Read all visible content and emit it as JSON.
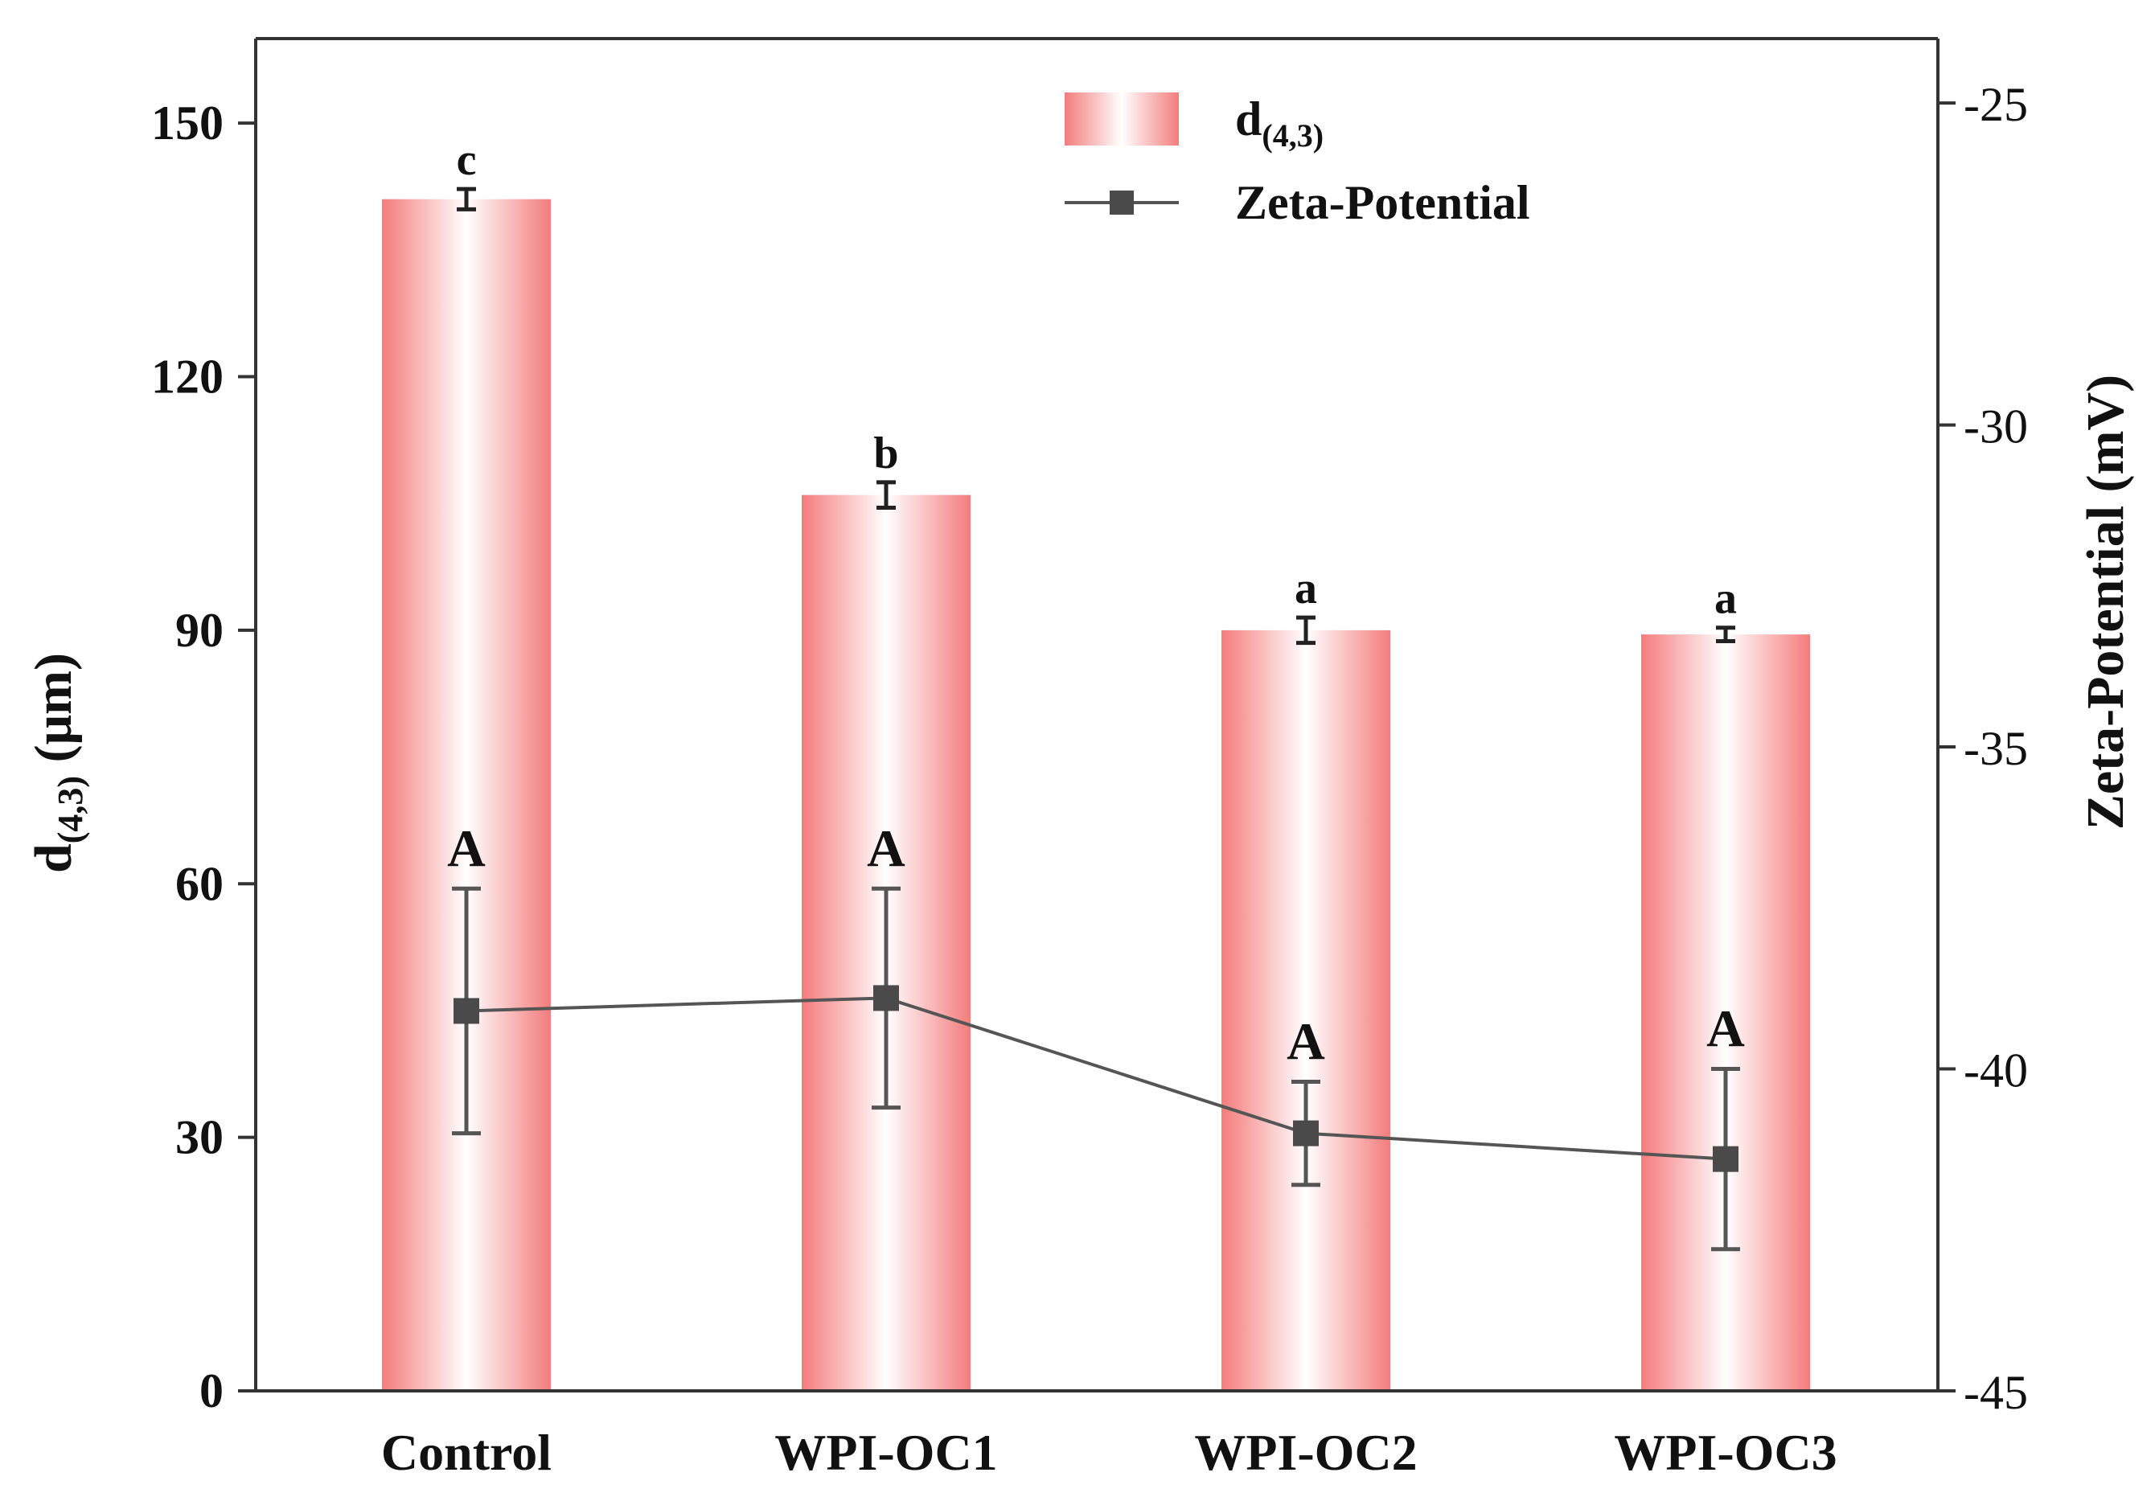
{
  "chart_data": {
    "type": "bar",
    "title": "",
    "categories": [
      "Control",
      "WPI-OC1",
      "WPI-OC2",
      "WPI-OC3"
    ],
    "xlabel": "",
    "ylabel": {
      "base": "d",
      "sub": "(4,3)",
      "unit": " (μm)"
    },
    "ylim": [
      0,
      160
    ],
    "yticks": [
      0,
      30,
      60,
      90,
      120,
      150
    ],
    "y2label": "Zeta-Potential (mV)",
    "y2lim": [
      -45,
      -24
    ],
    "y2ticks": [
      -45,
      -40,
      -35,
      -30,
      -25
    ],
    "tick_labels": {
      "y": [
        "0",
        "30",
        "60",
        "90",
        "120",
        "150"
      ],
      "y2": [
        "-45",
        "-40",
        "-35",
        "-30",
        "-25"
      ]
    },
    "series": [
      {
        "name": "d(4,3)",
        "legend_label": {
          "base": "d",
          "sub": "(4,3)"
        },
        "kind": "bar",
        "axis": "left",
        "values": [
          141,
          106,
          90,
          89.5
        ],
        "errors": [
          1.2,
          1.5,
          1.5,
          0.8
        ],
        "letters": [
          "c",
          "b",
          "a",
          "a"
        ],
        "color": "#f47c7c"
      },
      {
        "name": "Zeta-Potential",
        "legend_label": "Zeta-Potential",
        "kind": "line",
        "axis": "right",
        "values": [
          -39.1,
          -38.9,
          -41.0,
          -41.4
        ],
        "errors": [
          1.9,
          1.7,
          0.8,
          1.4
        ],
        "letters": [
          "A",
          "A",
          "A",
          "A"
        ],
        "color": "#555555"
      }
    ],
    "legend": "top-center"
  }
}
